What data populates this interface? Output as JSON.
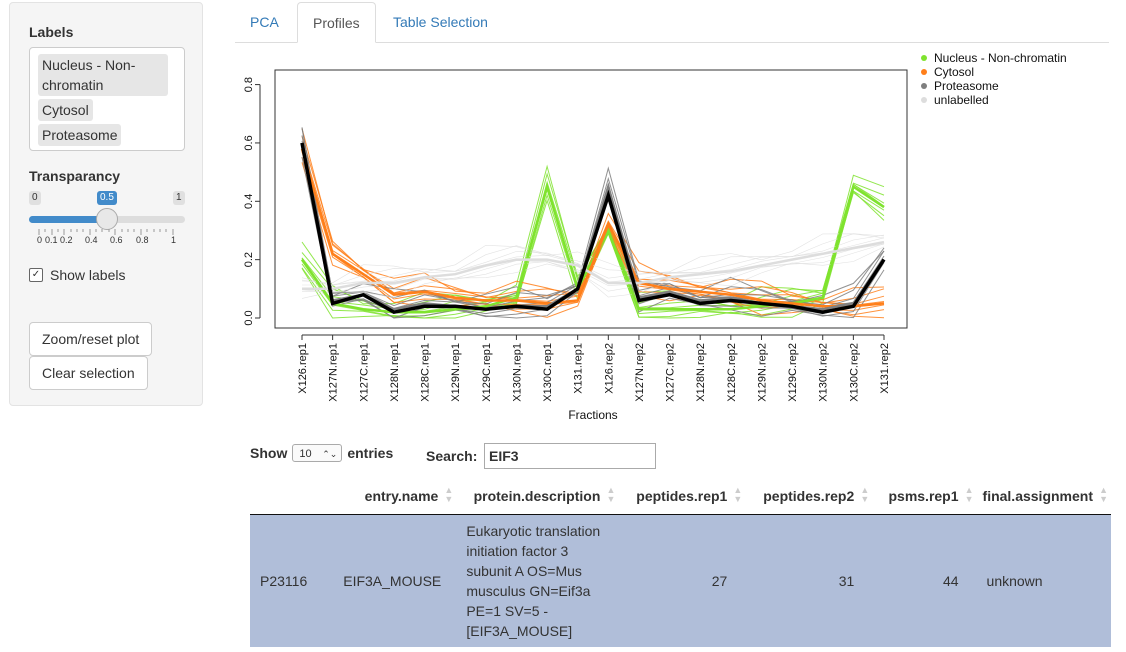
{
  "sidebar": {
    "labels_heading": "Labels",
    "labels": [
      "Nucleus - Non-chromatin",
      "Cytosol",
      "Proteasome"
    ],
    "transparency_heading": "Transparancy",
    "slider": {
      "min": "0",
      "max": "1",
      "value": "0.5",
      "ticks": [
        "0",
        "0.1",
        "0.2",
        "0.4",
        "0.6",
        "0.8",
        "1"
      ]
    },
    "show_labels": "Show labels",
    "zoom_button": "Zoom/reset plot",
    "clear_button": "Clear selection"
  },
  "tabs": [
    {
      "label": "PCA",
      "active": false
    },
    {
      "label": "Profiles",
      "active": true
    },
    {
      "label": "Table Selection",
      "active": false
    }
  ],
  "chart_data": {
    "type": "line",
    "xlabel": "Fractions",
    "ylabel": "",
    "ylim": [
      0,
      0.85
    ],
    "yticks": [
      "0.0",
      "0.2",
      "0.4",
      "0.6",
      "0.8"
    ],
    "categories": [
      "X126.rep1",
      "X127N.rep1",
      "X127C.rep1",
      "X128N.rep1",
      "X128C.rep1",
      "X129N.rep1",
      "X129C.rep1",
      "X130N.rep1",
      "X130C.rep1",
      "X131.rep1",
      "X126.rep2",
      "X127N.rep2",
      "X127C.rep2",
      "X128N.rep2",
      "X128C.rep2",
      "X129N.rep2",
      "X129C.rep2",
      "X130N.rep2",
      "X130C.rep2",
      "X131.rep2"
    ],
    "legend_position": "top-right",
    "series": [
      {
        "name": "Nucleus - Non-chromatin",
        "color": "#7FE32E",
        "values": [
          0.2,
          0.05,
          0.03,
          0.02,
          0.02,
          0.03,
          0.04,
          0.07,
          0.45,
          0.1,
          0.3,
          0.03,
          0.03,
          0.03,
          0.03,
          0.04,
          0.05,
          0.07,
          0.45,
          0.38
        ]
      },
      {
        "name": "Cytosol",
        "color": "#FF7F1A",
        "values": [
          0.58,
          0.22,
          0.15,
          0.08,
          0.09,
          0.07,
          0.06,
          0.06,
          0.05,
          0.06,
          0.32,
          0.12,
          0.1,
          0.09,
          0.08,
          0.06,
          0.05,
          0.04,
          0.04,
          0.05
        ]
      },
      {
        "name": "Proteasome",
        "color": "#7F7F7F",
        "values": [
          0.6,
          0.06,
          0.08,
          0.03,
          0.05,
          0.04,
          0.03,
          0.04,
          0.04,
          0.1,
          0.45,
          0.07,
          0.09,
          0.06,
          0.07,
          0.05,
          0.04,
          0.03,
          0.05,
          0.2
        ]
      },
      {
        "name": "unlabelled",
        "color": "#DDDDDD",
        "values": [
          0.1,
          0.1,
          0.12,
          0.12,
          0.14,
          0.15,
          0.18,
          0.2,
          0.2,
          0.18,
          0.12,
          0.12,
          0.14,
          0.15,
          0.16,
          0.18,
          0.2,
          0.22,
          0.24,
          0.26
        ]
      }
    ],
    "highlight": {
      "name": "",
      "color": "#000000",
      "values": [
        0.6,
        0.05,
        0.08,
        0.02,
        0.04,
        0.04,
        0.03,
        0.04,
        0.03,
        0.1,
        0.42,
        0.06,
        0.08,
        0.05,
        0.06,
        0.05,
        0.04,
        0.02,
        0.04,
        0.2
      ]
    }
  },
  "table": {
    "show_label": "Show",
    "entries_label": "entries",
    "page_length": "10",
    "search_label": "Search:",
    "search_value": "EIF3",
    "columns": [
      "",
      "entry.name",
      "protein.description",
      "peptides.rep1",
      "peptides.rep2",
      "psms.rep1",
      "final.assignment"
    ],
    "rows": [
      {
        "id": "P23116",
        "entry_name": "EIF3A_MOUSE",
        "description_lines": [
          "Eukaryotic translation",
          "initiation factor 3",
          "subunit A OS=Mus",
          "musculus GN=Eif3a",
          "PE=1 SV=5 -",
          "[EIF3A_MOUSE]"
        ],
        "peptides_rep1": "27",
        "peptides_rep2": "31",
        "psms_rep1": "44",
        "final_assignment": "unknown"
      }
    ]
  }
}
